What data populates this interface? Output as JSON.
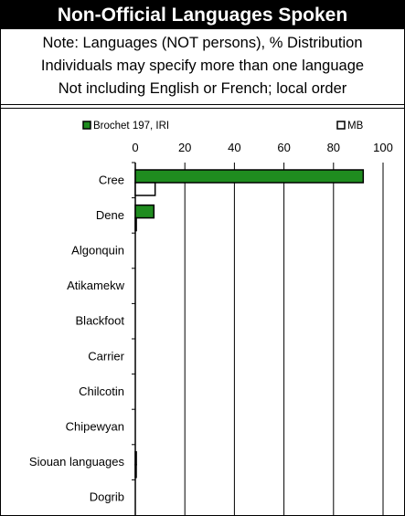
{
  "chart_data": {
    "type": "bar",
    "orientation": "horizontal",
    "title": "Non-Official Languages Spoken",
    "subtitle_lines": [
      "Note: Languages (NOT persons), % Distribution",
      "Individuals may specify more than one language",
      "Not including English or French; local order"
    ],
    "categories": [
      "Cree",
      "Dene",
      "Algonquin",
      "Atikamekw",
      "Blackfoot",
      "Carrier",
      "Chilcotin",
      "Chipewyan",
      "Siouan languages",
      "Dogrib"
    ],
    "series": [
      {
        "name": "Brochet 197, IRI",
        "color": "#1f8c1f",
        "values": [
          92,
          7.5,
          0,
          0,
          0,
          0,
          0,
          0,
          0.4,
          0
        ]
      },
      {
        "name": "MB",
        "color": "#ffffff",
        "values": [
          8,
          0.4,
          0,
          0,
          0,
          0,
          0,
          0,
          0.2,
          0
        ]
      }
    ],
    "xlim": [
      0,
      100
    ],
    "xticks": [
      "0",
      "20",
      "40",
      "60",
      "80",
      "100"
    ],
    "grid": true,
    "legend_position": "top"
  }
}
